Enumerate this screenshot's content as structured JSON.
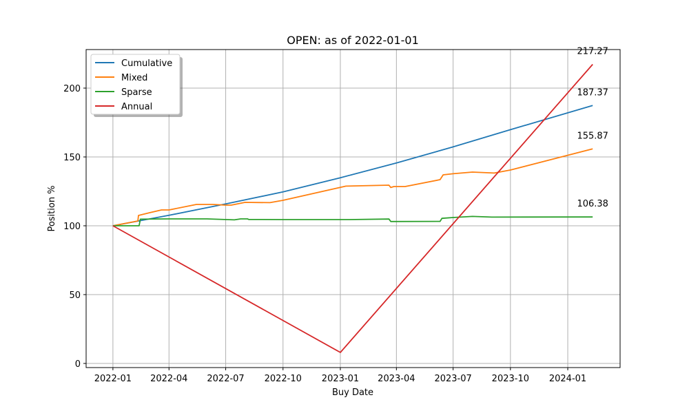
{
  "chart_data": {
    "type": "line",
    "title": "OPEN: as of 2022-01-01",
    "xlabel": "Buy Date",
    "ylabel": "Position %",
    "grid": true,
    "legend_placement": "top-left",
    "xlim": [
      "2021-11-19",
      "2024-03-25"
    ],
    "ylim": [
      -3,
      228
    ],
    "x_ticks": [
      "2022-01-01",
      "2022-04-01",
      "2022-07-01",
      "2022-10-01",
      "2023-01-01",
      "2023-04-01",
      "2023-07-01",
      "2023-10-01",
      "2024-01-01"
    ],
    "x_tick_labels": [
      "2022-01",
      "2022-04",
      "2022-07",
      "2022-10",
      "2023-01",
      "2023-04",
      "2023-07",
      "2023-10",
      "2024-01"
    ],
    "y_ticks": [
      0,
      50,
      100,
      150,
      200
    ],
    "y_tick_labels": [
      "0",
      "50",
      "100",
      "150",
      "200"
    ],
    "series": [
      {
        "name": "Cumulative",
        "color": "#1f77b4",
        "end_label": "187.37",
        "points": [
          [
            "2022-01-01",
            100
          ],
          [
            "2022-04-01",
            107.6
          ],
          [
            "2022-07-01",
            115.9
          ],
          [
            "2022-10-01",
            124.6
          ],
          [
            "2023-01-01",
            134.9
          ],
          [
            "2023-04-01",
            145.6
          ],
          [
            "2023-07-01",
            157.3
          ],
          [
            "2023-10-01",
            169.8
          ],
          [
            "2024-02-10",
            187.37
          ]
        ]
      },
      {
        "name": "Mixed",
        "color": "#ff7f0e",
        "end_label": "155.87",
        "points": [
          [
            "2022-01-01",
            100
          ],
          [
            "2022-02-10",
            103.5
          ],
          [
            "2022-02-11",
            107.5
          ],
          [
            "2022-03-01",
            109.5
          ],
          [
            "2022-03-20",
            111.5
          ],
          [
            "2022-04-01",
            111.5
          ],
          [
            "2022-05-15",
            115.5
          ],
          [
            "2022-06-10",
            115.5
          ],
          [
            "2022-07-01",
            115
          ],
          [
            "2022-07-10",
            115
          ],
          [
            "2022-08-01",
            117
          ],
          [
            "2022-09-10",
            116.8
          ],
          [
            "2022-10-01",
            118.5
          ],
          [
            "2023-01-10",
            128.8
          ],
          [
            "2023-03-20",
            129.5
          ],
          [
            "2023-03-23",
            127.8
          ],
          [
            "2023-03-28",
            128.5
          ],
          [
            "2023-04-15",
            128.5
          ],
          [
            "2023-06-10",
            133.5
          ],
          [
            "2023-06-15",
            137
          ],
          [
            "2023-07-01",
            137.8
          ],
          [
            "2023-08-01",
            139
          ],
          [
            "2023-09-05",
            138.3
          ],
          [
            "2023-10-01",
            140.5
          ],
          [
            "2024-02-10",
            155.87
          ]
        ]
      },
      {
        "name": "Sparse",
        "color": "#2ca02c",
        "end_label": "106.38",
        "points": [
          [
            "2022-01-01",
            100
          ],
          [
            "2022-02-12",
            100
          ],
          [
            "2022-02-14",
            104.8
          ],
          [
            "2022-04-01",
            105
          ],
          [
            "2022-06-01",
            105
          ],
          [
            "2022-07-15",
            104.3
          ],
          [
            "2022-07-25",
            105
          ],
          [
            "2022-08-05",
            105
          ],
          [
            "2022-08-07",
            104.6
          ],
          [
            "2022-10-01",
            104.5
          ],
          [
            "2023-01-15",
            104.5
          ],
          [
            "2023-03-20",
            104.9
          ],
          [
            "2023-03-23",
            103.1
          ],
          [
            "2023-06-10",
            103.2
          ],
          [
            "2023-06-13",
            105.4
          ],
          [
            "2023-07-01",
            106
          ],
          [
            "2023-08-01",
            106.8
          ],
          [
            "2023-09-01",
            106.3
          ],
          [
            "2024-02-10",
            106.38
          ]
        ]
      },
      {
        "name": "Annual",
        "color": "#d62728",
        "end_label": "217.27",
        "points": [
          [
            "2022-01-01",
            100
          ],
          [
            "2023-01-01",
            8
          ],
          [
            "2024-02-10",
            217.27
          ]
        ]
      }
    ]
  }
}
